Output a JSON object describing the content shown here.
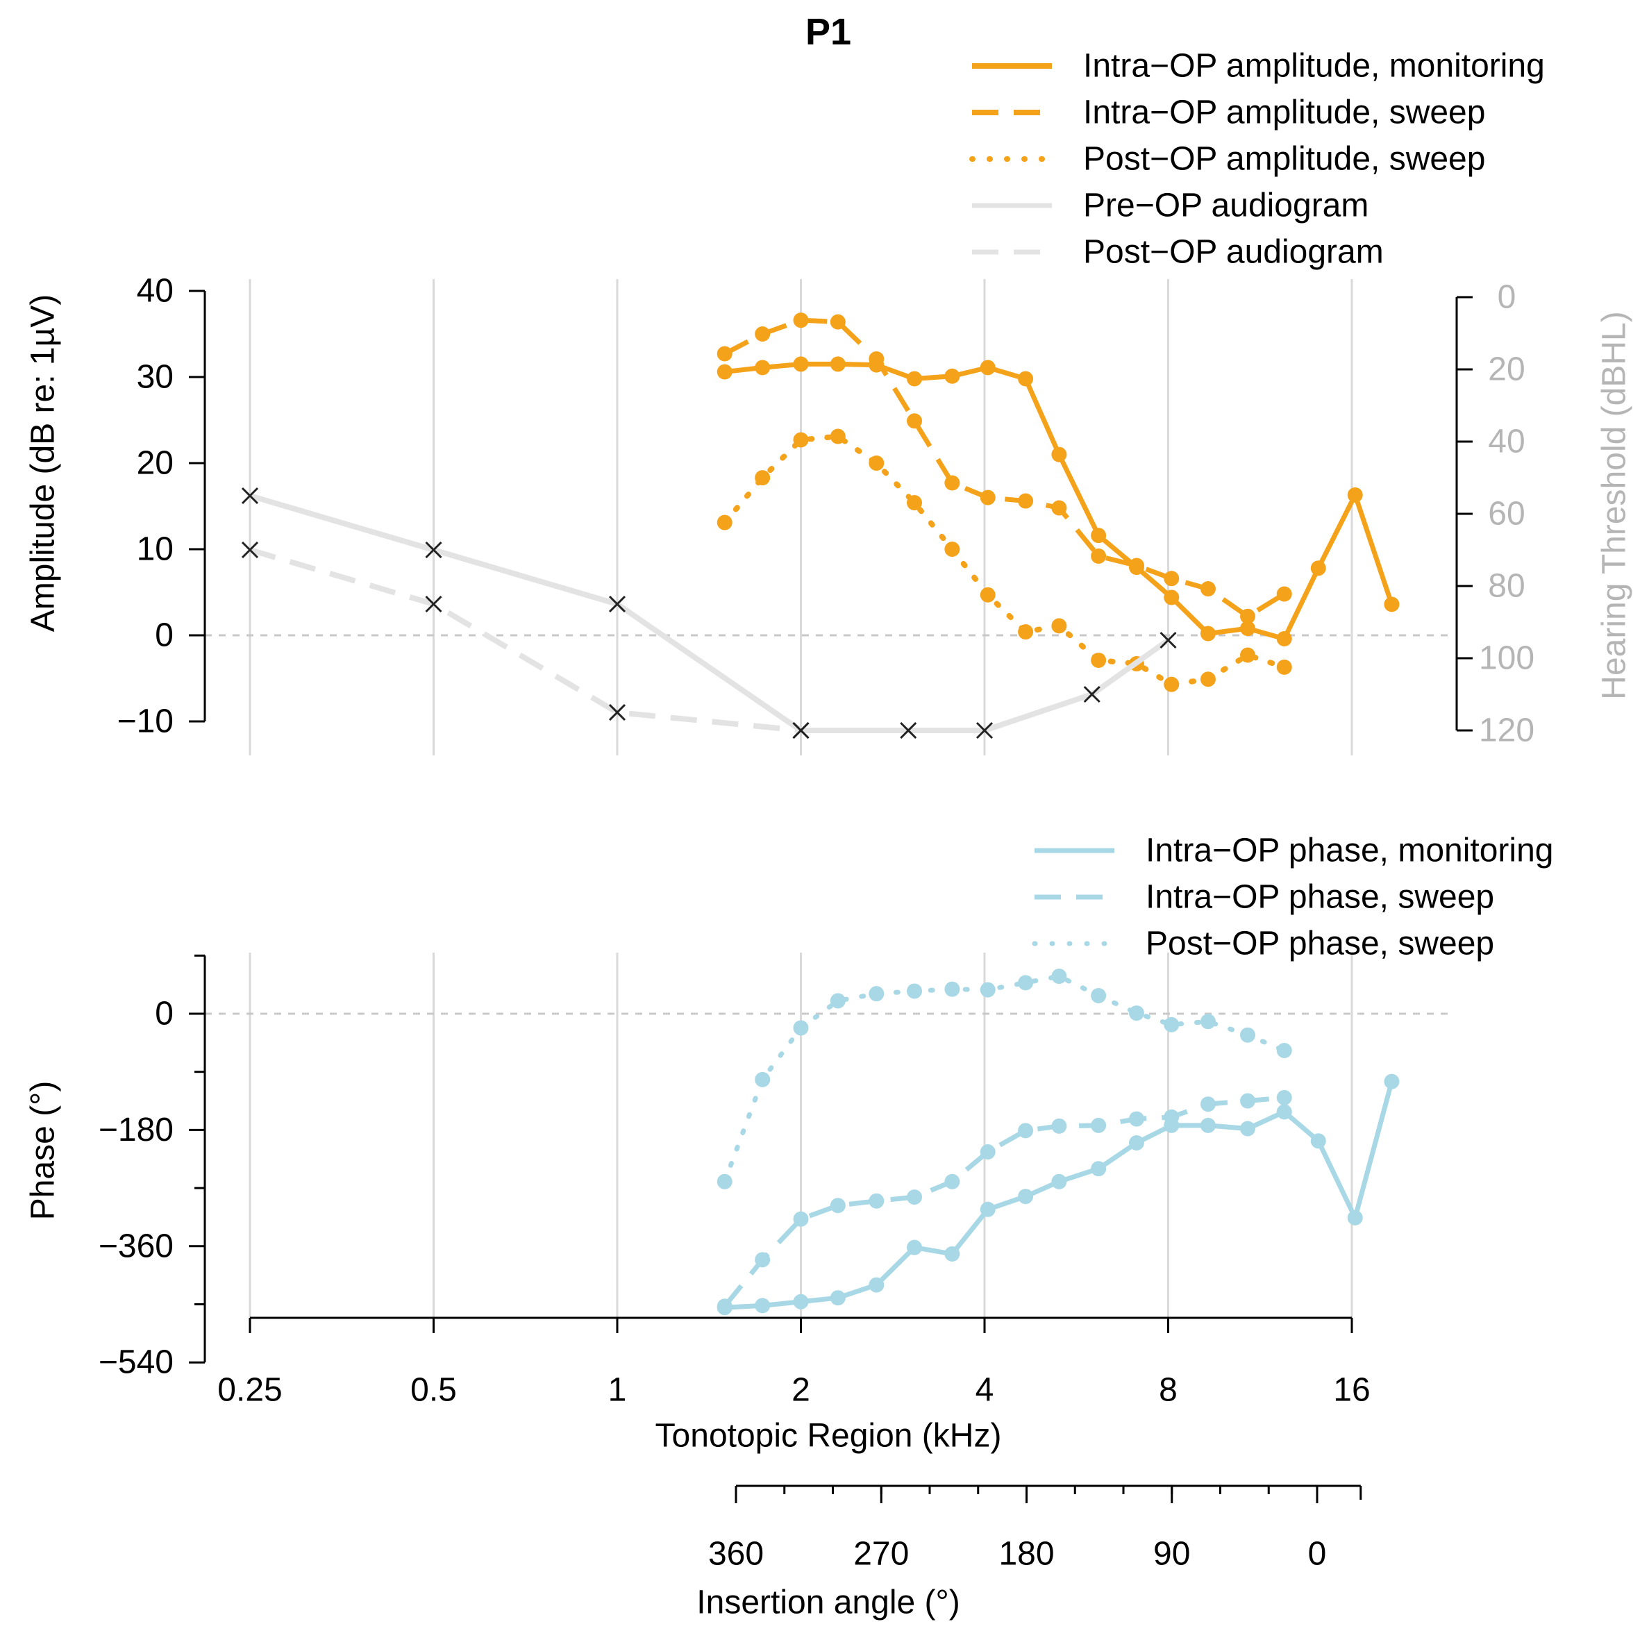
{
  "colors": {
    "orange": "#f5a21b",
    "blue": "#a8d8e6",
    "audiogram": "#e3e3e3",
    "grid": "#d9d9d9",
    "axis": "#000000",
    "right_axis_text": "#b5b5b5",
    "zero_line": "#c8c8c8"
  },
  "chart_data": [
    {
      "panel": "amplitude",
      "type": "line",
      "title": "P1",
      "xlabel": "",
      "ylabel": "Amplitude (dB re: 1µV)",
      "y2label": "Hearing Threshold (dBHL)",
      "x_scale": "log2",
      "x_range_khz": [
        0.25,
        16
      ],
      "x_grid_khz": [
        0.25,
        0.5,
        1,
        2,
        4,
        8,
        16
      ],
      "ylim": [
        -10,
        40
      ],
      "yticks": [
        -10,
        0,
        10,
        20,
        30,
        40
      ],
      "y2lim": [
        0,
        120
      ],
      "y2ticks": [
        0,
        20,
        40,
        60,
        80,
        100,
        120
      ],
      "y2ticks_label": [
        "0",
        "20",
        "40",
        "60",
        "80",
        "100",
        "120"
      ],
      "legend": {
        "position": "top-right",
        "entries": [
          {
            "label": "Intra−OP amplitude, monitoring",
            "style": "solid",
            "color": "orange"
          },
          {
            "label": "Intra−OP amplitude, sweep",
            "style": "dashed",
            "color": "orange"
          },
          {
            "label": "Post−OP amplitude, sweep",
            "style": "dotted",
            "color": "orange"
          },
          {
            "label": "Pre−OP audiogram",
            "style": "solid",
            "color": "audiogram"
          },
          {
            "label": "Post−OP audiogram",
            "style": "dashed",
            "color": "audiogram"
          }
        ]
      },
      "series": [
        {
          "name": "Intra−OP amplitude, monitoring",
          "axis": "left",
          "style": "solid",
          "x_khz": [
            1.5,
            1.73,
            2,
            2.3,
            2.66,
            3.07,
            3.54,
            4.05,
            4.67,
            5.3,
            6.15,
            7.1,
            8.1,
            9.3,
            10.8,
            12.4,
            14.1,
            16.2,
            18.6
          ],
          "values": [
            30.6,
            31.1,
            31.5,
            31.5,
            31.4,
            29.8,
            30.1,
            31.1,
            29.8,
            21.0,
            11.6,
            7.9,
            4.4,
            0.2,
            0.8,
            -0.4,
            7.8,
            16.3,
            3.6
          ]
        },
        {
          "name": "Intra−OP amplitude, sweep",
          "axis": "left",
          "style": "dashed",
          "x_khz": [
            1.5,
            1.73,
            2,
            2.3,
            2.66,
            3.07,
            3.54,
            4.05,
            4.67,
            5.3,
            6.15,
            7.1,
            8.1,
            9.3,
            10.8,
            12.4
          ],
          "values": [
            32.7,
            35.0,
            36.6,
            36.4,
            32.1,
            24.9,
            17.7,
            16.0,
            15.6,
            14.8,
            9.2,
            8.1,
            6.6,
            5.4,
            2.2,
            4.8
          ]
        },
        {
          "name": "Post−OP amplitude, sweep",
          "axis": "left",
          "style": "dotted",
          "x_khz": [
            1.5,
            1.73,
            2,
            2.3,
            2.66,
            3.07,
            3.54,
            4.05,
            4.67,
            5.3,
            6.15,
            7.1,
            8.1,
            9.3,
            10.8,
            12.4
          ],
          "values": [
            13.1,
            18.3,
            22.7,
            23.1,
            20.0,
            15.4,
            10.0,
            4.7,
            0.4,
            1.1,
            -2.9,
            -3.3,
            -5.7,
            -5.1,
            -2.3,
            -3.7
          ]
        },
        {
          "name": "Pre−OP audiogram",
          "axis": "right",
          "style": "solid",
          "marker": "x",
          "x_khz": [
            0.25,
            0.5,
            1,
            2,
            3,
            4,
            6,
            8
          ],
          "values": [
            55,
            70,
            85,
            120,
            120,
            120,
            110,
            95
          ]
        },
        {
          "name": "Post−OP audiogram",
          "axis": "right",
          "style": "dashed",
          "marker": "x",
          "x_khz": [
            0.25,
            0.5,
            1,
            2
          ],
          "values": [
            70,
            85,
            115,
            120
          ]
        }
      ]
    },
    {
      "panel": "phase",
      "type": "line",
      "title": "",
      "xlabel": "Tonotopic Region (kHz)",
      "ylabel": "Phase (°)",
      "x_scale": "log2",
      "xticks_khz": [
        0.25,
        0.5,
        1,
        2,
        4,
        8,
        16
      ],
      "xticks_label": [
        "0.25",
        "0.5",
        "1",
        "2",
        "4",
        "8",
        "16"
      ],
      "ylim": [
        -540,
        90
      ],
      "yticks": [
        -540,
        -360,
        -180,
        0
      ],
      "yticks_label": [
        "−540",
        "−360",
        "−180",
        "0"
      ],
      "yticks_minor": [
        -450,
        -270,
        -90,
        90
      ],
      "legend": {
        "position": "top-right",
        "entries": [
          {
            "label": "Intra−OP phase, monitoring",
            "style": "solid",
            "color": "blue"
          },
          {
            "label": "Intra−OP phase, sweep",
            "style": "dashed",
            "color": "blue"
          },
          {
            "label": "Post−OP phase, sweep",
            "style": "dotted",
            "color": "blue"
          }
        ]
      },
      "series": [
        {
          "name": "Intra−OP phase, monitoring",
          "style": "solid",
          "x_khz": [
            1.5,
            1.73,
            2,
            2.3,
            2.66,
            3.07,
            3.54,
            4.05,
            4.67,
            5.3,
            6.15,
            7.1,
            8.1,
            9.3,
            10.8,
            12.4,
            14.1,
            16.2,
            18.6
          ],
          "values": [
            -455,
            -452,
            -446,
            -440,
            -420,
            -362,
            -372,
            -303,
            -283,
            -260,
            -240,
            -200,
            -173,
            -173,
            -178,
            -152,
            -197,
            -316,
            -105
          ]
        },
        {
          "name": "Intra−OP phase, sweep",
          "style": "dashed",
          "x_khz": [
            1.5,
            1.73,
            2,
            2.3,
            2.66,
            3.07,
            3.54,
            4.05,
            4.67,
            5.3,
            6.15,
            7.1,
            8.1,
            9.3,
            10.8,
            12.4
          ],
          "values": [
            -453,
            -381,
            -318,
            -297,
            -290,
            -284,
            -260,
            -214,
            -181,
            -174,
            -173,
            -163,
            -160,
            -140,
            -135,
            -130
          ]
        },
        {
          "name": "Post−OP phase, sweep",
          "style": "dotted",
          "x_khz": [
            1.5,
            1.73,
            2,
            2.3,
            2.66,
            3.07,
            3.54,
            4.05,
            4.67,
            5.3,
            6.15,
            7.1,
            8.1,
            9.3,
            10.8,
            12.4
          ],
          "values": [
            -260,
            -102,
            -22,
            20,
            31,
            35,
            38,
            37,
            48,
            58,
            28,
            1,
            -17,
            -12,
            -33,
            -57
          ]
        }
      ]
    },
    {
      "panel": "insertion_angle_axis",
      "type": "axis",
      "xlabel": "Insertion angle (°)",
      "ticks": [
        360,
        270,
        180,
        90,
        0
      ],
      "ticks_label": [
        "360",
        "270",
        "180",
        "90",
        "0"
      ],
      "range": [
        360,
        -27
      ],
      "minor_step": 30
    }
  ]
}
